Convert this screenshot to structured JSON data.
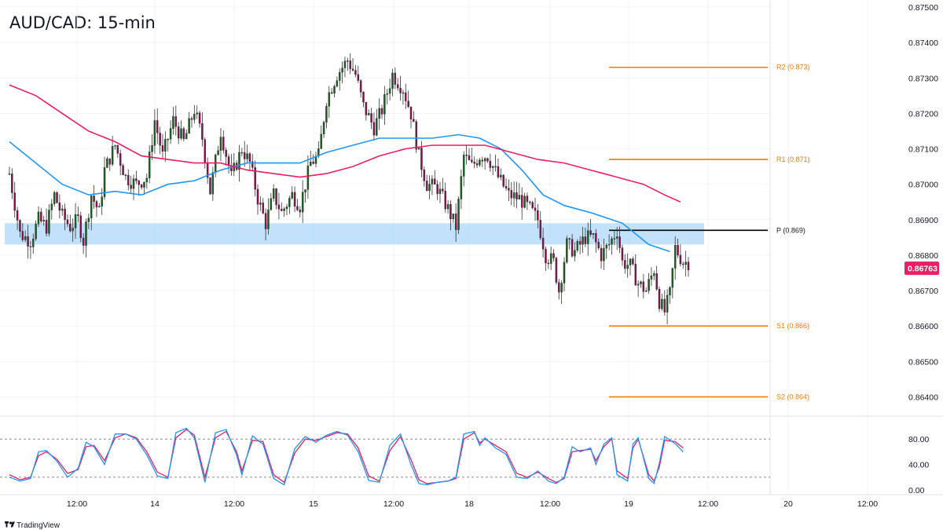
{
  "header": {
    "title": "AUD/CAD: 15-min"
  },
  "brand": {
    "name": "TradingView"
  },
  "price_badge": {
    "value": "0.86763",
    "color": "#e91e63"
  },
  "colors": {
    "candle_up": "#1b5e20",
    "candle_down": "#880e4f",
    "wick": "#333333",
    "ma_fast": "#2196f3",
    "ma_slow": "#e91e63",
    "pivot_lines": "#f57c00",
    "pivot_main": "#000000",
    "zone": "#90caf9",
    "stoch_k": "#2196f3",
    "stoch_d": "#e91e63"
  },
  "chart_data": [
    {
      "type": "candlestick",
      "title": "AUD/CAD: 15-min",
      "price_axis": [
        "0.87500",
        "0.87400",
        "0.87300",
        "0.87200",
        "0.87100",
        "0.87000",
        "0.86900",
        "0.86800",
        "0.86700",
        "0.86600",
        "0.86500",
        "0.86400"
      ],
      "time_axis": [
        "12:00",
        "14",
        "12:00",
        "15",
        "12:00",
        "18",
        "12:00",
        "19",
        "12:00",
        "20",
        "12:00"
      ],
      "ylim": [
        0.8635,
        0.8752
      ],
      "last_price": 0.86763,
      "support_resistance_zone": {
        "low": 0.8683,
        "high": 0.8689
      },
      "pivot_levels": [
        {
          "label": "R2 (0.873)",
          "value": 0.8733
        },
        {
          "label": "R1 (0.871)",
          "value": 0.8707
        },
        {
          "label": "P (0.869)",
          "value": 0.8687
        },
        {
          "label": "S1 (0.866)",
          "value": 0.866
        },
        {
          "label": "S2 (0.864)",
          "value": 0.864
        }
      ],
      "price_path": [
        [
          0,
          0.8703
        ],
        [
          4,
          0.8686
        ],
        [
          8,
          0.8684
        ],
        [
          11,
          0.869
        ],
        [
          14,
          0.8688
        ],
        [
          17,
          0.8697
        ],
        [
          20,
          0.8691
        ],
        [
          23,
          0.8688
        ],
        [
          26,
          0.869
        ],
        [
          28,
          0.8684
        ],
        [
          31,
          0.8697
        ],
        [
          34,
          0.8692
        ],
        [
          36,
          0.8704
        ],
        [
          40,
          0.8711
        ],
        [
          44,
          0.8702
        ],
        [
          48,
          0.87
        ],
        [
          52,
          0.8702
        ],
        [
          55,
          0.8718
        ],
        [
          58,
          0.8708
        ],
        [
          62,
          0.8718
        ],
        [
          66,
          0.8712
        ],
        [
          70,
          0.8721
        ],
        [
          73,
          0.8713
        ],
        [
          76,
          0.8698
        ],
        [
          80,
          0.8715
        ],
        [
          84,
          0.8702
        ],
        [
          88,
          0.871
        ],
        [
          91,
          0.8706
        ],
        [
          94,
          0.8696
        ],
        [
          97,
          0.8689
        ],
        [
          100,
          0.8697
        ],
        [
          103,
          0.8692
        ],
        [
          107,
          0.8697
        ],
        [
          110,
          0.8694
        ],
        [
          114,
          0.8706
        ],
        [
          117,
          0.8708
        ],
        [
          120,
          0.8724
        ],
        [
          124,
          0.8731
        ],
        [
          128,
          0.8735
        ],
        [
          131,
          0.8731
        ],
        [
          134,
          0.8722
        ],
        [
          138,
          0.8716
        ],
        [
          141,
          0.8721
        ],
        [
          145,
          0.8731
        ],
        [
          149,
          0.8727
        ],
        [
          152,
          0.872
        ],
        [
          155,
          0.8708
        ],
        [
          158,
          0.87
        ],
        [
          162,
          0.8699
        ],
        [
          166,
          0.8693
        ],
        [
          169,
          0.8688
        ],
        [
          172,
          0.8708
        ],
        [
          175,
          0.8705
        ],
        [
          178,
          0.8708
        ],
        [
          181,
          0.8708
        ],
        [
          185,
          0.8702
        ],
        [
          189,
          0.8697
        ],
        [
          193,
          0.8696
        ],
        [
          197,
          0.8693
        ],
        [
          200,
          0.869
        ],
        [
          203,
          0.868
        ],
        [
          206,
          0.8678
        ],
        [
          208,
          0.867
        ],
        [
          211,
          0.8683
        ],
        [
          214,
          0.8681
        ],
        [
          218,
          0.8685
        ],
        [
          221,
          0.8685
        ],
        [
          224,
          0.868
        ],
        [
          227,
          0.8683
        ],
        [
          230,
          0.8687
        ],
        [
          232,
          0.8678
        ],
        [
          235,
          0.8677
        ],
        [
          238,
          0.8672
        ],
        [
          241,
          0.867
        ],
        [
          244,
          0.8676
        ],
        [
          246,
          0.8667
        ],
        [
          248,
          0.8664
        ],
        [
          250,
          0.8669
        ],
        [
          252,
          0.8682
        ],
        [
          255,
          0.8678
        ],
        [
          257,
          0.8678
        ]
      ],
      "series": [
        {
          "name": "",
          "path": [
            [
              0,
              0.8712
            ],
            [
              10,
              0.8706
            ],
            [
              20,
              0.87
            ],
            [
              30,
              0.8697
            ],
            [
              40,
              0.8698
            ],
            [
              50,
              0.8697
            ],
            [
              60,
              0.87
            ],
            [
              70,
              0.8701
            ],
            [
              80,
              0.8704
            ],
            [
              90,
              0.8706
            ],
            [
              100,
              0.8706
            ],
            [
              110,
              0.8706
            ],
            [
              120,
              0.8709
            ],
            [
              130,
              0.8711
            ],
            [
              140,
              0.8713
            ],
            [
              150,
              0.8713
            ],
            [
              160,
              0.8713
            ],
            [
              170,
              0.8714
            ],
            [
              178,
              0.8713
            ],
            [
              186,
              0.871
            ],
            [
              194,
              0.8704
            ],
            [
              202,
              0.8697
            ],
            [
              210,
              0.8694
            ],
            [
              220,
              0.8692
            ],
            [
              232,
              0.8689
            ],
            [
              242,
              0.8683
            ],
            [
              250,
              0.8681
            ]
          ]
        },
        {
          "name": "",
          "path": [
            [
              0,
              0.8728
            ],
            [
              10,
              0.8725
            ],
            [
              20,
              0.872
            ],
            [
              30,
              0.8715
            ],
            [
              40,
              0.8712
            ],
            [
              50,
              0.8708
            ],
            [
              60,
              0.8707
            ],
            [
              70,
              0.8706
            ],
            [
              80,
              0.8706
            ],
            [
              90,
              0.8704
            ],
            [
              100,
              0.8703
            ],
            [
              110,
              0.8702
            ],
            [
              120,
              0.8703
            ],
            [
              130,
              0.8705
            ],
            [
              140,
              0.8708
            ],
            [
              150,
              0.871
            ],
            [
              160,
              0.8711
            ],
            [
              170,
              0.8711
            ],
            [
              180,
              0.8711
            ],
            [
              190,
              0.8709
            ],
            [
              200,
              0.8707
            ],
            [
              210,
              0.8706
            ],
            [
              220,
              0.8704
            ],
            [
              230,
              0.8702
            ],
            [
              240,
              0.87
            ],
            [
              248,
              0.8697
            ],
            [
              254,
              0.8695
            ]
          ]
        }
      ]
    },
    {
      "type": "line",
      "ylim": [
        0,
        100
      ],
      "y_ticks": [
        "80.00",
        "40.00",
        "0.00"
      ],
      "bands": [
        80,
        20
      ],
      "k_path": [
        [
          0,
          20
        ],
        [
          4,
          14
        ],
        [
          8,
          18
        ],
        [
          11,
          60
        ],
        [
          14,
          62
        ],
        [
          18,
          45
        ],
        [
          22,
          20
        ],
        [
          26,
          34
        ],
        [
          29,
          75
        ],
        [
          32,
          68
        ],
        [
          36,
          40
        ],
        [
          40,
          88
        ],
        [
          44,
          88
        ],
        [
          48,
          80
        ],
        [
          52,
          55
        ],
        [
          56,
          22
        ],
        [
          60,
          18
        ],
        [
          63,
          90
        ],
        [
          67,
          97
        ],
        [
          70,
          82
        ],
        [
          74,
          12
        ],
        [
          78,
          90
        ],
        [
          82,
          95
        ],
        [
          86,
          55
        ],
        [
          88,
          24
        ],
        [
          92,
          85
        ],
        [
          96,
          72
        ],
        [
          100,
          18
        ],
        [
          104,
          8
        ],
        [
          108,
          65
        ],
        [
          112,
          84
        ],
        [
          116,
          75
        ],
        [
          120,
          86
        ],
        [
          124,
          92
        ],
        [
          128,
          86
        ],
        [
          132,
          60
        ],
        [
          136,
          15
        ],
        [
          140,
          12
        ],
        [
          144,
          70
        ],
        [
          148,
          88
        ],
        [
          152,
          40
        ],
        [
          155,
          10
        ],
        [
          158,
          8
        ],
        [
          162,
          12
        ],
        [
          166,
          14
        ],
        [
          169,
          20
        ],
        [
          172,
          88
        ],
        [
          176,
          92
        ],
        [
          178,
          70
        ],
        [
          180,
          82
        ],
        [
          184,
          66
        ],
        [
          188,
          56
        ],
        [
          192,
          20
        ],
        [
          196,
          18
        ],
        [
          200,
          30
        ],
        [
          204,
          14
        ],
        [
          207,
          10
        ],
        [
          210,
          20
        ],
        [
          213,
          68
        ],
        [
          216,
          60
        ],
        [
          220,
          66
        ],
        [
          222,
          40
        ],
        [
          225,
          72
        ],
        [
          228,
          82
        ],
        [
          230,
          24
        ],
        [
          234,
          14
        ],
        [
          236,
          72
        ],
        [
          238,
          82
        ],
        [
          242,
          18
        ],
        [
          244,
          10
        ],
        [
          246,
          42
        ],
        [
          248,
          84
        ],
        [
          252,
          73
        ],
        [
          255,
          60
        ]
      ],
      "d_path": [
        [
          0,
          24
        ],
        [
          4,
          16
        ],
        [
          8,
          20
        ],
        [
          11,
          54
        ],
        [
          14,
          60
        ],
        [
          18,
          48
        ],
        [
          22,
          26
        ],
        [
          26,
          32
        ],
        [
          29,
          68
        ],
        [
          32,
          70
        ],
        [
          36,
          46
        ],
        [
          40,
          82
        ],
        [
          44,
          88
        ],
        [
          48,
          82
        ],
        [
          52,
          60
        ],
        [
          56,
          28
        ],
        [
          60,
          20
        ],
        [
          63,
          82
        ],
        [
          67,
          95
        ],
        [
          70,
          86
        ],
        [
          74,
          20
        ],
        [
          78,
          82
        ],
        [
          82,
          92
        ],
        [
          86,
          60
        ],
        [
          88,
          30
        ],
        [
          92,
          78
        ],
        [
          96,
          76
        ],
        [
          100,
          24
        ],
        [
          104,
          12
        ],
        [
          108,
          58
        ],
        [
          112,
          80
        ],
        [
          116,
          78
        ],
        [
          120,
          84
        ],
        [
          124,
          90
        ],
        [
          128,
          88
        ],
        [
          132,
          66
        ],
        [
          136,
          22
        ],
        [
          140,
          14
        ],
        [
          144,
          62
        ],
        [
          148,
          84
        ],
        [
          152,
          48
        ],
        [
          155,
          16
        ],
        [
          158,
          10
        ],
        [
          162,
          12
        ],
        [
          166,
          14
        ],
        [
          169,
          18
        ],
        [
          172,
          80
        ],
        [
          176,
          90
        ],
        [
          178,
          74
        ],
        [
          180,
          80
        ],
        [
          184,
          70
        ],
        [
          188,
          60
        ],
        [
          192,
          26
        ],
        [
          196,
          20
        ],
        [
          200,
          28
        ],
        [
          204,
          18
        ],
        [
          207,
          12
        ],
        [
          210,
          18
        ],
        [
          213,
          60
        ],
        [
          216,
          62
        ],
        [
          220,
          64
        ],
        [
          222,
          46
        ],
        [
          225,
          68
        ],
        [
          228,
          80
        ],
        [
          230,
          30
        ],
        [
          234,
          18
        ],
        [
          236,
          66
        ],
        [
          238,
          80
        ],
        [
          242,
          24
        ],
        [
          244,
          14
        ],
        [
          246,
          36
        ],
        [
          248,
          78
        ],
        [
          252,
          76
        ],
        [
          255,
          66
        ]
      ]
    }
  ]
}
